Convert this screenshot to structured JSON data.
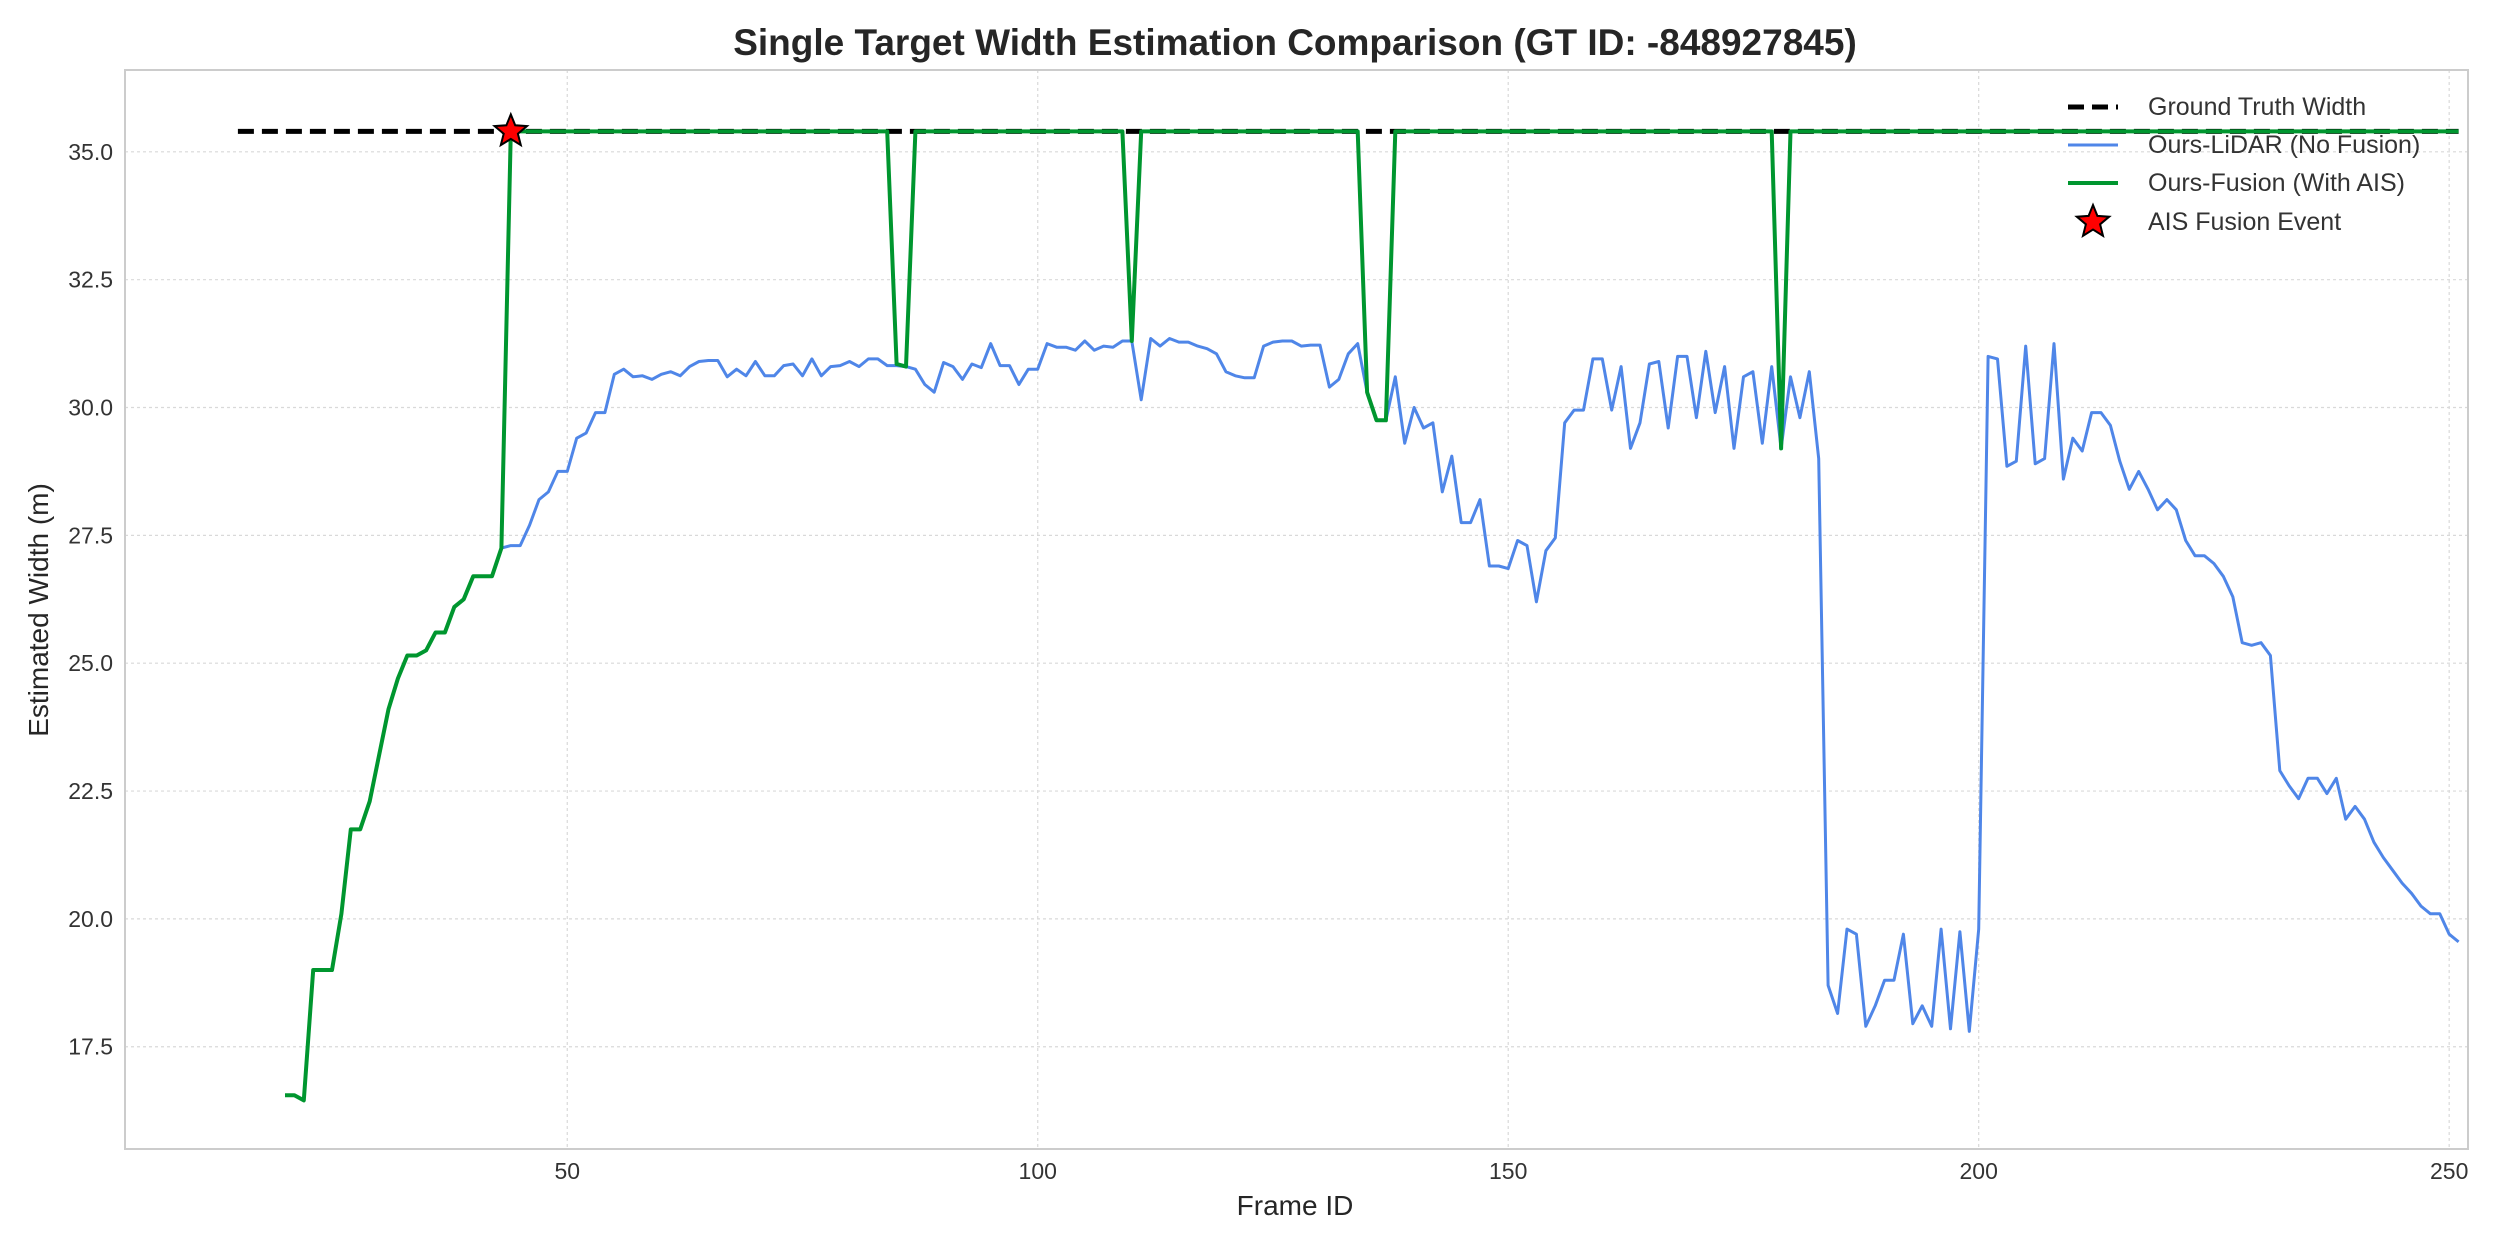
{
  "chart_data": {
    "type": "line",
    "title": "Single Target Width Estimation Comparison (GT ID: -848927845)",
    "xlabel": "Frame ID",
    "ylabel": "Estimated Width (m)",
    "xlim": [
      3,
      252
    ],
    "ylim": [
      15.5,
      36.6
    ],
    "xticks": [
      50,
      100,
      150,
      200,
      250
    ],
    "yticks": [
      17.5,
      20.0,
      22.5,
      25.0,
      27.5,
      30.0,
      32.5,
      35.0
    ],
    "grid": true,
    "legend_position": "top-right",
    "colors": {
      "ground_truth": "#000000",
      "lidar": "#4f86e8",
      "fusion": "#00962f",
      "event": "#ff0000"
    },
    "series": [
      {
        "key": "ground_truth",
        "name": "Ground Truth Width",
        "style": "dashed",
        "x": [
          15,
          251
        ],
        "y": [
          35.4,
          35.4
        ]
      },
      {
        "key": "lidar",
        "name": "Ours-LiDAR (No Fusion)",
        "style": "solid",
        "x": [
          20,
          21,
          22,
          23,
          24,
          25,
          26,
          27,
          28,
          29,
          30,
          31,
          32,
          33,
          34,
          35,
          36,
          37,
          38,
          39,
          40,
          41,
          42,
          43,
          44,
          45,
          46,
          47,
          48,
          49,
          50,
          51,
          52,
          53,
          54,
          55,
          56,
          57,
          58,
          59,
          60,
          61,
          62,
          63,
          64,
          65,
          66,
          67,
          68,
          69,
          70,
          71,
          72,
          73,
          74,
          75,
          76,
          77,
          78,
          79,
          80,
          81,
          82,
          83,
          84,
          85,
          86,
          87,
          88,
          89,
          90,
          91,
          92,
          93,
          94,
          95,
          96,
          97,
          98,
          99,
          100,
          101,
          102,
          103,
          104,
          105,
          106,
          107,
          108,
          109,
          110,
          111,
          112,
          113,
          114,
          115,
          116,
          117,
          118,
          119,
          120,
          121,
          122,
          123,
          124,
          125,
          126,
          127,
          128,
          129,
          130,
          131,
          132,
          133,
          134,
          135,
          136,
          137,
          138,
          139,
          140,
          141,
          142,
          143,
          144,
          145,
          146,
          147,
          148,
          149,
          150,
          151,
          152,
          153,
          154,
          155,
          156,
          157,
          158,
          159,
          160,
          161,
          162,
          163,
          164,
          165,
          166,
          167,
          168,
          169,
          170,
          171,
          172,
          173,
          174,
          175,
          176,
          177,
          178,
          179,
          180,
          181,
          182,
          183,
          184,
          185,
          186,
          187,
          188,
          189,
          190,
          191,
          192,
          193,
          194,
          195,
          196,
          197,
          198,
          199,
          200,
          201,
          202,
          203,
          204,
          205,
          206,
          207,
          208,
          209,
          210,
          211,
          212,
          213,
          214,
          215,
          216,
          217,
          218,
          219,
          220,
          221,
          222,
          223,
          224,
          225,
          226,
          227,
          228,
          229,
          230,
          231,
          232,
          233,
          234,
          235,
          236,
          237,
          238,
          239,
          240,
          241,
          242,
          243,
          244,
          245,
          246,
          247,
          248,
          249,
          250,
          251
        ],
        "y": [
          16.55,
          16.55,
          16.45,
          19.0,
          19.0,
          19.0,
          20.1,
          21.75,
          21.75,
          22.3,
          23.2,
          24.1,
          24.7,
          25.15,
          25.15,
          25.25,
          25.6,
          25.6,
          26.1,
          26.25,
          26.7,
          26.7,
          26.7,
          27.25,
          27.3,
          27.3,
          27.7,
          28.2,
          28.35,
          28.75,
          28.75,
          29.4,
          29.5,
          29.9,
          29.9,
          30.65,
          30.75,
          30.6,
          30.62,
          30.55,
          30.65,
          30.7,
          30.62,
          30.8,
          30.9,
          30.92,
          30.92,
          30.6,
          30.75,
          30.62,
          30.9,
          30.62,
          30.62,
          30.82,
          30.85,
          30.62,
          30.95,
          30.62,
          30.8,
          30.82,
          30.9,
          30.8,
          30.95,
          30.95,
          30.82,
          30.82,
          30.8,
          30.75,
          30.45,
          30.3,
          30.88,
          30.8,
          30.55,
          30.85,
          30.78,
          31.25,
          30.82,
          30.82,
          30.45,
          30.75,
          30.75,
          31.25,
          31.18,
          31.18,
          31.12,
          31.3,
          31.12,
          31.2,
          31.18,
          31.3,
          31.3,
          30.15,
          31.35,
          31.2,
          31.35,
          31.28,
          31.28,
          31.2,
          31.15,
          31.05,
          30.7,
          30.62,
          30.58,
          30.58,
          31.2,
          31.28,
          31.3,
          31.3,
          31.2,
          31.22,
          31.22,
          30.4,
          30.55,
          31.05,
          31.25,
          30.3,
          29.75,
          29.75,
          30.6,
          29.3,
          30.0,
          29.6,
          29.7,
          28.35,
          29.05,
          27.75,
          27.75,
          28.2,
          26.9,
          26.9,
          26.85,
          27.4,
          27.3,
          26.2,
          27.2,
          27.45,
          29.7,
          29.95,
          29.95,
          30.95,
          30.95,
          29.95,
          30.8,
          29.2,
          29.7,
          30.85,
          30.9,
          29.6,
          31.0,
          31.0,
          29.8,
          31.1,
          29.9,
          30.8,
          29.2,
          30.6,
          30.7,
          29.3,
          30.8,
          29.2,
          30.6,
          29.8,
          30.7,
          29.0,
          18.7,
          18.15,
          19.8,
          19.7,
          17.9,
          18.3,
          18.8,
          18.8,
          19.7,
          17.95,
          18.3,
          17.9,
          19.8,
          17.85,
          19.75,
          17.8,
          19.8,
          31.0,
          30.95,
          28.85,
          28.95,
          31.2,
          28.9,
          29.0,
          31.25,
          28.6,
          29.4,
          29.15,
          29.9,
          29.9,
          29.65,
          28.95,
          28.4,
          28.75,
          28.4,
          28.0,
          28.2,
          28.0,
          27.4,
          27.1,
          27.1,
          26.95,
          26.7,
          26.3,
          25.4,
          25.35,
          25.4,
          25.15,
          22.9,
          22.6,
          22.35,
          22.75,
          22.75,
          22.45,
          22.75,
          21.95,
          22.2,
          21.95,
          21.5,
          21.2,
          20.95,
          20.7,
          20.5,
          20.25,
          20.1,
          20.1,
          19.7,
          19.55
        ]
      },
      {
        "key": "fusion",
        "name": "Ours-Fusion (With AIS)",
        "style": "solid",
        "x": [
          20,
          21,
          22,
          23,
          24,
          25,
          26,
          27,
          28,
          29,
          30,
          31,
          32,
          33,
          34,
          35,
          36,
          37,
          38,
          39,
          40,
          41,
          42,
          43,
          44,
          45,
          84,
          85,
          86,
          87,
          88,
          109,
          110,
          111,
          134,
          135,
          136,
          137,
          138,
          178,
          179,
          180,
          251
        ],
        "y": [
          16.55,
          16.55,
          16.45,
          19.0,
          19.0,
          19.0,
          20.1,
          21.75,
          21.75,
          22.3,
          23.2,
          24.1,
          24.7,
          25.15,
          25.15,
          25.25,
          25.6,
          25.6,
          26.1,
          26.25,
          26.7,
          26.7,
          26.7,
          27.25,
          35.4,
          35.4,
          35.4,
          30.85,
          30.8,
          35.4,
          35.4,
          35.4,
          31.3,
          35.4,
          35.4,
          30.3,
          29.75,
          29.75,
          35.4,
          35.4,
          29.2,
          35.4,
          35.4
        ]
      }
    ],
    "events": {
      "name": "AIS Fusion Event",
      "marker": "star",
      "points": [
        {
          "x": 44,
          "y": 35.4
        }
      ]
    }
  }
}
